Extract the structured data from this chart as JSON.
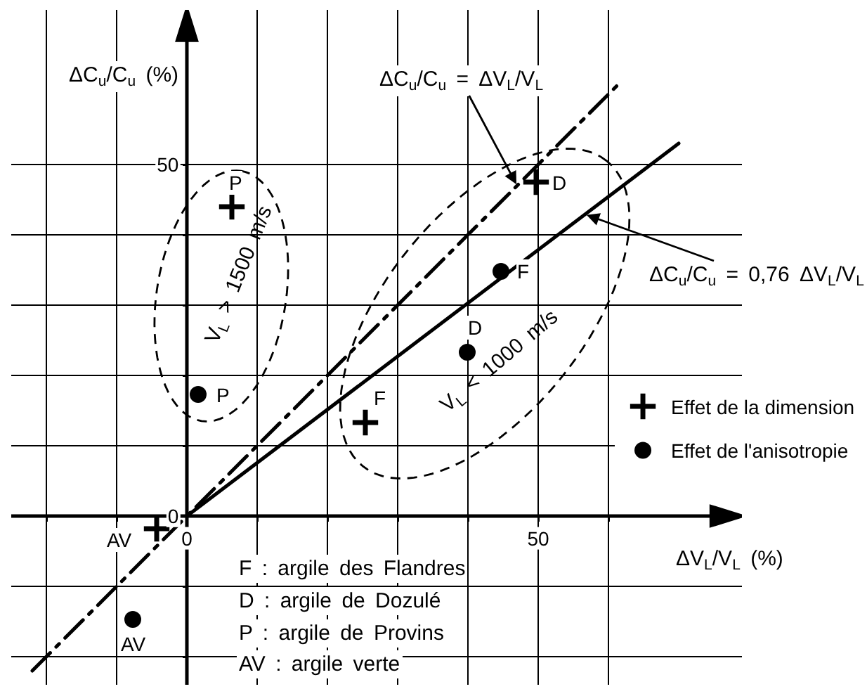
{
  "chart_data": {
    "type": "scatter",
    "xlabel": "ΔV$_{L}$/V$_{L}$ (%)",
    "ylabel": "ΔC$_{u}$/C$_{u}$ (%)",
    "xlim": [
      -25,
      79
    ],
    "ylim": [
      -24,
      72
    ],
    "xticks": [
      {
        "value": -20,
        "label": null
      },
      {
        "value": -10,
        "label": null
      },
      0,
      {
        "value": 10,
        "label": null
      },
      {
        "value": 20,
        "label": null
      },
      {
        "value": 30,
        "label": null
      },
      {
        "value": 40,
        "label": null
      },
      50,
      {
        "value": 60,
        "label": null
      }
    ],
    "yticks": [
      {
        "value": -20,
        "label": null
      },
      {
        "value": -10,
        "label": null
      },
      0,
      {
        "value": 10,
        "label": null
      },
      {
        "value": 20,
        "label": null
      },
      {
        "value": 30,
        "label": null
      },
      {
        "value": 40,
        "label": null
      },
      50
    ],
    "grid": true,
    "legend": "right",
    "series": [
      {
        "type": "line",
        "color": "#000000",
        "x": [
          -22,
          62
        ],
        "values": [
          -22,
          62
        ],
        "line_style": "dashdot"
      },
      {
        "type": "line",
        "color": "#000000",
        "x": [
          0,
          70
        ],
        "values": [
          0,
          53
        ],
        "line_style": "solid"
      },
      {
        "name": "Effet de la dimension",
        "color": "#000000",
        "x": [
          6.4,
          49.7,
          25.4,
          -4.3
        ],
        "values": [
          44,
          47.5,
          13.3,
          -1.8
        ],
        "marker": "cross"
      },
      {
        "name": "Effet de l'anisotropie",
        "color": "#000000",
        "x": [
          1.6,
          44.7,
          39.9,
          -7.7
        ],
        "values": [
          17.3,
          34.8,
          23.3,
          -14.7
        ],
        "marker": "circle"
      }
    ],
    "annotations": [
      {
        "text": "ΔC$_{u}$/C$_{u}$ = ΔV$_{L}$/V$_{L}$",
        "x": 47,
        "y": 47
      },
      {
        "text": "ΔC$_{u}$/C$_{u}$ = 0,76 ΔV$_{L}$/V$_{L}$",
        "x": 56.7,
        "y": 42.9
      },
      "V$_{L}$ > 1500 m/s",
      "V$_{L}$ < 1000 m/s",
      {
        "text": "P",
        "x": 6.4,
        "y": 44
      },
      {
        "text": "D",
        "x": 49.7,
        "y": 47.5
      },
      {
        "text": "F",
        "x": 25.4,
        "y": 13.3
      },
      {
        "text": "AV",
        "x": -4.3,
        "y": -1.8
      },
      {
        "text": "P",
        "x": 1.6,
        "y": 17.3
      },
      {
        "text": "F",
        "x": 44.7,
        "y": 34.8
      },
      {
        "text": "D",
        "x": 39.9,
        "y": 23.3
      },
      {
        "text": "AV",
        "x": -7.7,
        "y": -14.7
      },
      "F : argile des Flandres",
      "D : argile de Dozulé",
      "P : argile de Provins",
      "AV : argile verte"
    ]
  }
}
